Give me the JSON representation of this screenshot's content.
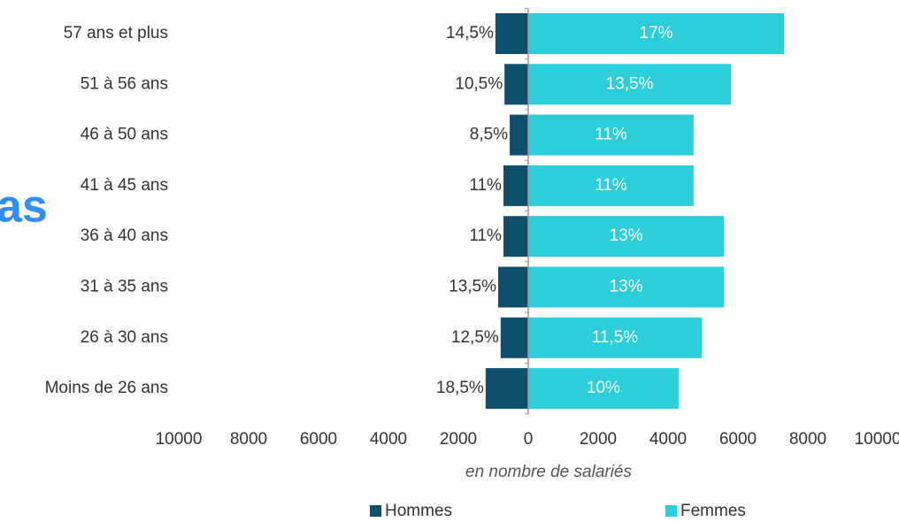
{
  "chart_data": {
    "type": "pyramid",
    "background_text": "as",
    "categories": [
      "57 ans et plus",
      "51 à 56 ans",
      "46 à 50 ans",
      "41 à 45 ans",
      "36 à 40 ans",
      "31 à 35 ans",
      "26 à 30 ans",
      "Moins de 26 ans"
    ],
    "series": [
      {
        "name": "Hommes",
        "color": "#0e4f6e",
        "values": [
          -940,
          -680,
          -530,
          -710,
          -710,
          -860,
          -790,
          -1220
        ],
        "percent_labels": [
          "14,5%",
          "10,5%",
          "8,5%",
          "11%",
          "11%",
          "13,5%",
          "12,5%",
          "18,5%"
        ]
      },
      {
        "name": "Femmes",
        "color": "#2ccfd9",
        "values": [
          7320,
          5800,
          4730,
          4730,
          5600,
          5600,
          4960,
          4300
        ],
        "percent_labels": [
          "17%",
          "13,5%",
          "11%",
          "11%",
          "13%",
          "13%",
          "11,5%",
          "10%"
        ]
      }
    ],
    "xlim": [
      -10000,
      10000
    ],
    "xticks": [
      {
        "value": -10000,
        "label": "10000"
      },
      {
        "value": -8000,
        "label": "8000"
      },
      {
        "value": -6000,
        "label": "6000"
      },
      {
        "value": -4000,
        "label": "4000"
      },
      {
        "value": -2000,
        "label": "2000"
      },
      0,
      2000,
      4000,
      6000,
      8000,
      10000
    ],
    "xlabel": "en nombre de salariés"
  }
}
